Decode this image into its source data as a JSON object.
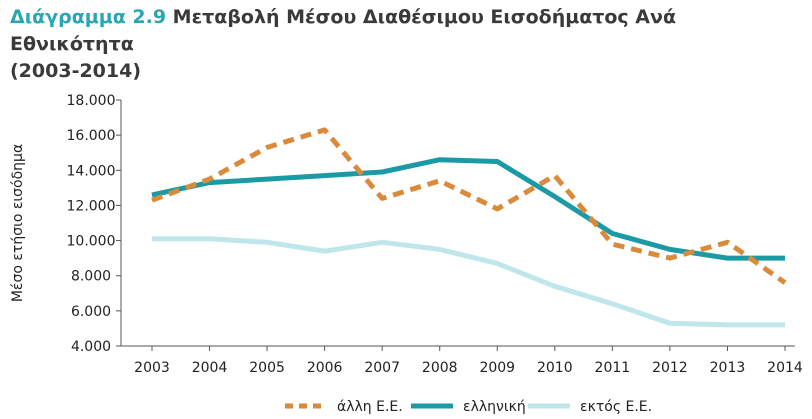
{
  "header": {
    "figure_label": "Διάγραμμα 2.9",
    "title": "Μεταβολή Μέσου Διαθέσιμου Εισοδήματος Ανά Εθνικότητα",
    "title_line2": "(2003-2014)"
  },
  "colors": {
    "title_accent": "#2aa6b0",
    "other_eu": "#d98a3a",
    "greek": "#1b9aa6",
    "non_eu": "#bfe6ea"
  },
  "chart_data": {
    "type": "line",
    "title": "Διάγραμμα 2.9 Μεταβολή Μέσου Διαθέσιμου Εισοδήματος Ανά Εθνικότητα (2003-2014)",
    "xlabel": "",
    "ylabel": "Μέσο ετήσιο εισόδημα",
    "categories": [
      "2003",
      "2004",
      "2005",
      "2006",
      "2007",
      "2008",
      "2009",
      "2010",
      "2011",
      "2012",
      "2013",
      "2014"
    ],
    "ylim": [
      4000,
      18000
    ],
    "yticks": [
      4000,
      6000,
      8000,
      10000,
      12000,
      14000,
      16000,
      18000
    ],
    "ytick_labels": [
      "4.000",
      "6.000",
      "8.000",
      "10.000",
      "12.000",
      "14.000",
      "16.000",
      "18.000"
    ],
    "grid": false,
    "legend_position": "bottom",
    "series": [
      {
        "name": "άλλη Ε.Ε.",
        "style": "dashed",
        "color": "#d98a3a",
        "values": [
          12300,
          13500,
          15300,
          16300,
          12400,
          13400,
          11800,
          13700,
          9800,
          9000,
          9900,
          7600
        ]
      },
      {
        "name": "ελληνική",
        "style": "solid",
        "color": "#1b9aa6",
        "values": [
          12600,
          13300,
          13500,
          13700,
          13900,
          14600,
          14500,
          12500,
          10400,
          9500,
          9000,
          9000
        ]
      },
      {
        "name": "εκτός Ε.Ε.",
        "style": "solid",
        "color": "#bfe6ea",
        "values": [
          10100,
          10100,
          9900,
          9400,
          9900,
          9500,
          8700,
          7400,
          6400,
          5300,
          5200,
          5200
        ]
      }
    ]
  }
}
